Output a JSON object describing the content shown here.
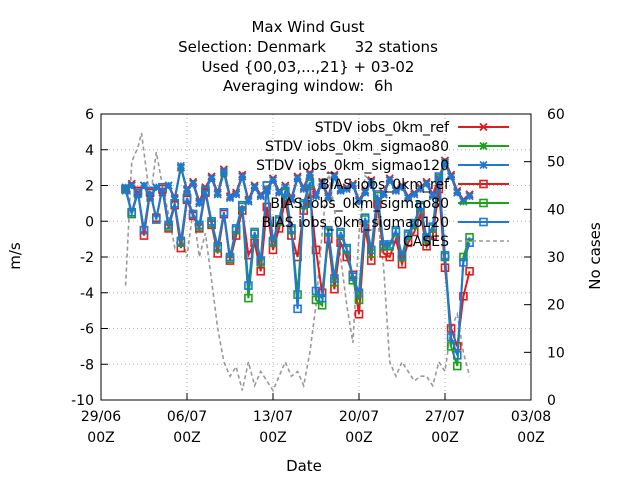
{
  "chart_data": {
    "type": "line",
    "title": [
      "Max Wind Gust",
      "Selection: Denmark      32 stations",
      "Used {00,03,...,21} + 03-02",
      "Averaging window:  6h"
    ],
    "xlabel": "Date",
    "ylabel": "m/s",
    "y2label": "No cases",
    "xlim": [
      0,
      35
    ],
    "ylim": [
      -10,
      6
    ],
    "y2lim": [
      0,
      60
    ],
    "x_ticks": [
      {
        "pos": 0,
        "line1": "29/06",
        "line2": "00Z"
      },
      {
        "pos": 7,
        "line1": "06/07",
        "line2": "00Z"
      },
      {
        "pos": 14,
        "line1": "13/07",
        "line2": "00Z"
      },
      {
        "pos": 21,
        "line1": "20/07",
        "line2": "00Z"
      },
      {
        "pos": 28,
        "line1": "27/07",
        "line2": "00Z"
      },
      {
        "pos": 35,
        "line1": "03/08",
        "line2": "00Z"
      }
    ],
    "y_ticks": [
      -10,
      -8,
      -6,
      -4,
      -2,
      0,
      2,
      4,
      6
    ],
    "y2_ticks": [
      0,
      10,
      20,
      30,
      40,
      50,
      60
    ],
    "grid": true,
    "legend_position": "top-right",
    "x": [
      2.0,
      2.5,
      3.0,
      3.5,
      4.0,
      4.5,
      5.0,
      5.5,
      6.0,
      6.5,
      7.0,
      7.5,
      8.0,
      8.5,
      9.0,
      9.5,
      10.0,
      10.5,
      11.0,
      11.5,
      12.0,
      12.5,
      13.0,
      13.5,
      14.0,
      14.5,
      15.0,
      15.5,
      16.0,
      16.5,
      17.0,
      17.5,
      18.0,
      18.5,
      19.0,
      19.5,
      20.0,
      20.5,
      21.0,
      21.5,
      22.0,
      22.5,
      23.0,
      23.5,
      24.0,
      24.5,
      25.0,
      25.5,
      26.0,
      26.5,
      27.0,
      27.5,
      28.0,
      28.5,
      29.0,
      29.5,
      30.0
    ],
    "series": [
      {
        "name": "STDV iobs_0km_ref",
        "color": "#e41a1c",
        "marker": "cross",
        "values": [
          1.8,
          2.1,
          1.6,
          2.0,
          1.4,
          1.9,
          1.7,
          2.0,
          1.3,
          3.0,
          1.8,
          2.2,
          1.1,
          1.9,
          2.5,
          1.6,
          2.9,
          1.4,
          1.6,
          2.6,
          1.2,
          2.0,
          1.5,
          1.8,
          2.4,
          1.7,
          2.0,
          1.3,
          2.5,
          1.9,
          2.7,
          1.5,
          2.2,
          1.4,
          2.6,
          1.8,
          1.9,
          2.1,
          1.2,
          1.7,
          2.3,
          1.0,
          1.6,
          2.4,
          1.8,
          2.0,
          1.4,
          1.6,
          1.9,
          2.2,
          1.5,
          2.4,
          3.4,
          2.6,
          1.7,
          1.2,
          1.5
        ]
      },
      {
        "name": "STDV iobs_0km_sigmao80",
        "color": "#1aa31a",
        "marker": "star",
        "values": [
          1.7,
          2.0,
          1.5,
          2.0,
          1.3,
          1.9,
          1.6,
          2.0,
          1.2,
          3.0,
          1.7,
          2.1,
          1.0,
          1.8,
          2.4,
          1.5,
          2.7,
          1.3,
          1.5,
          2.5,
          1.1,
          1.9,
          1.4,
          1.7,
          2.3,
          1.6,
          1.9,
          1.2,
          2.4,
          1.8,
          2.6,
          1.4,
          2.1,
          1.3,
          2.5,
          1.7,
          1.8,
          2.0,
          1.1,
          1.6,
          2.2,
          0.9,
          1.5,
          2.3,
          1.7,
          1.9,
          1.3,
          1.5,
          1.8,
          2.1,
          1.4,
          2.3,
          3.2,
          2.5,
          1.6,
          1.1,
          1.4
        ]
      },
      {
        "name": "STDV iobs_0km_sigmao120",
        "color": "#1f77d8",
        "marker": "asterisk",
        "values": [
          1.9,
          2.0,
          1.5,
          2.0,
          1.3,
          1.9,
          1.6,
          2.0,
          1.2,
          3.1,
          1.7,
          2.1,
          1.0,
          1.8,
          2.4,
          1.5,
          2.8,
          1.3,
          1.5,
          2.5,
          1.1,
          1.9,
          1.4,
          1.7,
          2.3,
          1.6,
          1.9,
          1.2,
          2.4,
          1.8,
          2.6,
          1.4,
          2.1,
          1.3,
          2.5,
          1.7,
          1.8,
          2.0,
          1.1,
          1.6,
          2.2,
          0.9,
          1.5,
          2.3,
          1.7,
          1.9,
          1.3,
          1.5,
          1.8,
          2.1,
          1.4,
          2.3,
          3.3,
          2.5,
          1.6,
          1.1,
          1.4
        ]
      },
      {
        "name": "BIAS iobs_0km_ref",
        "color": "#e41a1c",
        "marker": "square",
        "values": [
          1.8,
          0.5,
          1.7,
          -0.8,
          1.6,
          0.2,
          1.8,
          -0.4,
          0.9,
          -1.5,
          1.2,
          0.3,
          -0.4,
          1.6,
          -0.2,
          -1.8,
          0.4,
          -2.2,
          -0.8,
          0.6,
          -1.9,
          -1.2,
          -2.8,
          0.8,
          -1.6,
          -0.4,
          1.2,
          -0.8,
          -2.0,
          0.6,
          1.6,
          -1.6,
          -4.0,
          -1.0,
          -3.8,
          -1.2,
          -2.0,
          -3.0,
          -5.2,
          -0.4,
          -2.2,
          1.0,
          -1.8,
          -2.0,
          -1.0,
          -2.4,
          -1.2,
          -0.6,
          0.4,
          -1.4,
          -0.8,
          1.8,
          -2.6,
          -6.0,
          -7.0,
          -4.2,
          -2.8
        ]
      },
      {
        "name": "BIAS iobs_0km_sigmao80",
        "color": "#1aa31a",
        "marker": "square",
        "values": [
          1.8,
          0.4,
          1.6,
          -0.5,
          1.7,
          0.1,
          1.9,
          -0.3,
          1.0,
          -1.2,
          1.3,
          0.4,
          -0.3,
          1.7,
          -0.1,
          -1.5,
          0.5,
          -2.1,
          -0.5,
          0.8,
          -4.3,
          -0.7,
          -2.3,
          2.0,
          -1.2,
          0.0,
          1.6,
          -0.5,
          -4.1,
          0.9,
          2.1,
          -4.4,
          -4.7,
          -0.6,
          -3.4,
          -0.7,
          -1.6,
          -3.3,
          -4.4,
          0.1,
          -1.8,
          1.4,
          -1.4,
          -1.4,
          -0.6,
          -2.0,
          -0.8,
          -0.2,
          0.8,
          -1.0,
          -0.4,
          2.4,
          -2.0,
          -7.0,
          -8.1,
          -2.0,
          -0.9
        ]
      },
      {
        "name": "BIAS iobs_0km_sigmao120",
        "color": "#1f77d8",
        "marker": "square",
        "values": [
          1.8,
          0.5,
          1.6,
          -0.5,
          1.7,
          0.1,
          1.9,
          -0.2,
          1.0,
          -1.1,
          1.3,
          0.4,
          -0.2,
          1.7,
          0.0,
          -1.4,
          0.5,
          -2.0,
          -0.4,
          0.9,
          -3.6,
          -0.6,
          -2.2,
          2.0,
          -1.1,
          0.1,
          1.7,
          -0.4,
          -4.9,
          1.0,
          2.2,
          -3.9,
          -4.3,
          -0.5,
          -3.2,
          -0.6,
          -1.5,
          -3.1,
          -4.0,
          0.2,
          -1.6,
          1.5,
          -1.3,
          -1.3,
          -0.5,
          -1.9,
          -0.7,
          -0.1,
          0.9,
          -0.9,
          -0.3,
          2.5,
          -1.9,
          -6.5,
          -7.5,
          -2.3,
          -1.2
        ]
      }
    ],
    "cases": {
      "name": "CASES",
      "color": "#999999",
      "axis": "y2",
      "x": [
        2.0,
        2.5,
        3.0,
        3.3,
        3.6,
        4.0,
        4.5,
        5.0,
        5.5,
        6.0,
        6.5,
        7.0,
        7.5,
        8.0,
        8.5,
        9.0,
        9.5,
        10.0,
        10.5,
        11.0,
        11.5,
        12.0,
        12.5,
        13.0,
        13.5,
        14.0,
        14.5,
        15.0,
        15.5,
        16.0,
        16.5,
        17.0,
        17.5,
        18.0,
        18.5,
        19.0,
        19.5,
        20.0,
        20.5,
        21.0,
        21.5,
        22.0,
        22.5,
        23.0,
        23.5,
        24.0,
        24.5,
        25.0,
        25.5,
        26.0,
        26.5,
        27.0,
        27.5,
        28.0,
        28.5,
        29.0,
        29.5,
        30.0
      ],
      "values": [
        24,
        50,
        53,
        56,
        50,
        42,
        52,
        45,
        39,
        32,
        35,
        30,
        40,
        30,
        35,
        25,
        15,
        8,
        5,
        7,
        2,
        8,
        3,
        6,
        4,
        2,
        5,
        8,
        5,
        6,
        3,
        10,
        20,
        35,
        48,
        40,
        30,
        20,
        12,
        35,
        47,
        46,
        38,
        28,
        8,
        5,
        8,
        6,
        4,
        5,
        5,
        3,
        8,
        6,
        15,
        18,
        10,
        5
      ]
    }
  }
}
